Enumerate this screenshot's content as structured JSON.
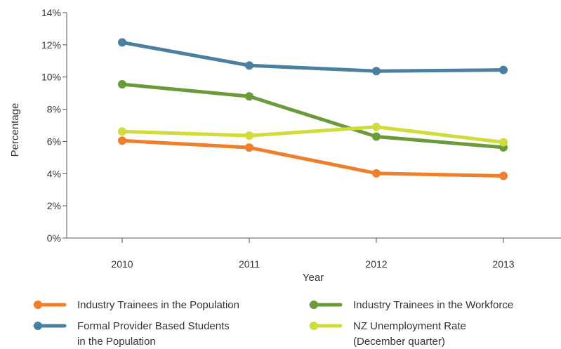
{
  "chart_data": {
    "type": "line",
    "title": "",
    "xlabel": "Year",
    "ylabel": "Percentage",
    "x": [
      "2010",
      "2011",
      "2012",
      "2013"
    ],
    "y_ticks": [
      "0%",
      "2%",
      "4%",
      "6%",
      "8%",
      "10%",
      "12%",
      "14%"
    ],
    "ylim": [
      0,
      14
    ],
    "grid": false,
    "legend_position": "bottom",
    "series": [
      {
        "name": "Formal Provider Based Students in the Population",
        "legend_lines": [
          "Formal Provider Based Students",
          "in the Population"
        ],
        "color": "#4a7f9f",
        "values": [
          12.15,
          10.72,
          10.37,
          10.44
        ]
      },
      {
        "name": "Industry Trainees in the Workforce",
        "legend_lines": [
          "Industry Trainees in the Workforce"
        ],
        "color": "#6a9a3a",
        "values": [
          9.55,
          8.8,
          6.3,
          5.63
        ]
      },
      {
        "name": "NZ Unemployment Rate (December quarter)",
        "legend_lines": [
          "NZ Unemployment Rate",
          "(December quarter)"
        ],
        "color": "#cfdc3c",
        "values": [
          6.62,
          6.36,
          6.9,
          5.95
        ]
      },
      {
        "name": "Industry Trainees in the Population",
        "legend_lines": [
          "Industry Trainees in the Population"
        ],
        "color": "#ef7f2a",
        "values": [
          6.05,
          5.62,
          4.02,
          3.86
        ]
      }
    ]
  }
}
